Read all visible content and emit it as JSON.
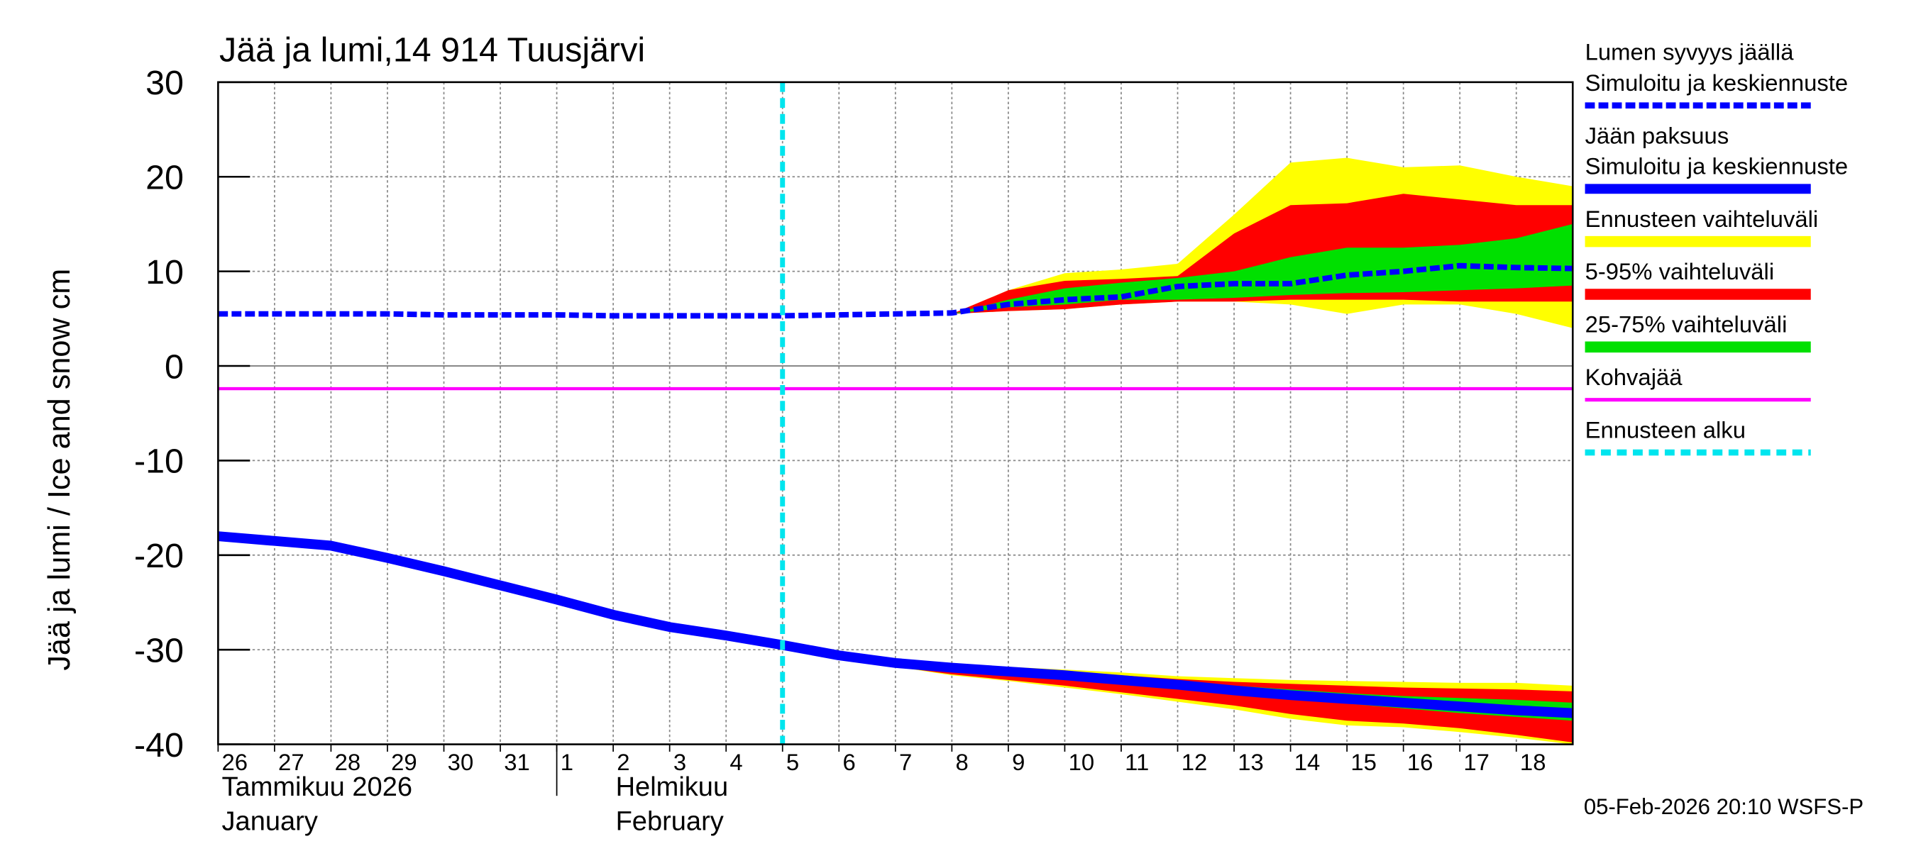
{
  "chart_data": {
    "type": "band-line",
    "title": "Jää ja lumi,14 914 Tuusjärvi",
    "ylabel": "Jää ja lumi / Ice and snow    cm",
    "footer": "05-Feb-2026 20:10 WSFS-P",
    "month_labels": [
      [
        "Tammikuu  2026",
        "January"
      ],
      [
        "Helmikuu",
        "February"
      ]
    ],
    "xlim": [
      0,
      24
    ],
    "xticks": [
      {
        "value": 0,
        "label": "26"
      },
      {
        "value": 1,
        "label": "27"
      },
      {
        "value": 2,
        "label": "28"
      },
      {
        "value": 3,
        "label": "29"
      },
      {
        "value": 4,
        "label": "30"
      },
      {
        "value": 5,
        "label": "31"
      },
      {
        "value": 6,
        "label": "1"
      },
      {
        "value": 7,
        "label": "2"
      },
      {
        "value": 8,
        "label": "3"
      },
      {
        "value": 9,
        "label": "4"
      },
      {
        "value": 10,
        "label": "5"
      },
      {
        "value": 11,
        "label": "6"
      },
      {
        "value": 12,
        "label": "7"
      },
      {
        "value": 13,
        "label": "8"
      },
      {
        "value": 14,
        "label": "9"
      },
      {
        "value": 15,
        "label": "10"
      },
      {
        "value": 16,
        "label": "11"
      },
      {
        "value": 17,
        "label": "12"
      },
      {
        "value": 18,
        "label": "13"
      },
      {
        "value": 19,
        "label": "14"
      },
      {
        "value": 20,
        "label": "15"
      },
      {
        "value": 21,
        "label": "16"
      },
      {
        "value": 22,
        "label": "17"
      },
      {
        "value": 23,
        "label": "18"
      }
    ],
    "month_start": 6,
    "ylim": [
      -40,
      30
    ],
    "yticks": [
      30,
      20,
      10,
      0,
      -10,
      -20,
      -30,
      -40
    ],
    "grid": true,
    "series": [
      {
        "name": [
          "Lumen syvyys jäällä",
          "Simuloitu ja keskiennuste"
        ],
        "kind": "line",
        "dashed": true,
        "color": "#0000ff",
        "x": [
          0,
          1,
          2,
          3,
          4,
          5,
          6,
          7,
          8,
          9,
          10,
          11,
          12,
          13,
          14,
          15,
          16,
          17,
          18,
          19,
          20,
          21,
          22,
          23,
          24
        ],
        "values": [
          5.5,
          5.5,
          5.5,
          5.5,
          5.4,
          5.4,
          5.4,
          5.3,
          5.3,
          5.3,
          5.3,
          5.4,
          5.5,
          5.6,
          6.5,
          7,
          7.3,
          8.4,
          8.7,
          8.7,
          9.6,
          10,
          10.6,
          10.4,
          10.3
        ]
      },
      {
        "name": [
          "Jään paksuus",
          "Simuloitu ja keskiennuste"
        ],
        "kind": "line",
        "dashed": false,
        "color": "#0000ff",
        "x": [
          0,
          1,
          2,
          3,
          4,
          5,
          6,
          7,
          8,
          9,
          10,
          11,
          12,
          13,
          14,
          15,
          16,
          17,
          18,
          19,
          20,
          21,
          22,
          23,
          24
        ],
        "values": [
          -18,
          -18.5,
          -19,
          -20.3,
          -21.7,
          -23.2,
          -24.7,
          -26.3,
          -27.6,
          -28.5,
          -29.5,
          -30.6,
          -31.4,
          -31.9,
          -32.3,
          -32.7,
          -33.2,
          -33.7,
          -34.3,
          -34.8,
          -35.2,
          -35.6,
          -36,
          -36.4,
          -36.7
        ]
      },
      {
        "name": [
          "Ennusteen vaihteluväli"
        ],
        "kind": "band",
        "color": "#ffff00",
        "bands": [
          {
            "x": [
              13,
              14,
              15,
              16,
              17,
              18,
              19,
              20,
              21,
              22,
              23,
              24
            ],
            "upper": [
              5.5,
              8,
              9.8,
              10.2,
              10.8,
              16,
              21.5,
              22,
              21,
              21.2,
              20,
              19
            ],
            "lower": [
              5.5,
              5.8,
              6,
              6.5,
              6.8,
              6.8,
              6.5,
              5.5,
              6.5,
              6.5,
              5.5,
              4
            ]
          },
          {
            "x": [
              10,
              11,
              12,
              13,
              14,
              15,
              16,
              17,
              18,
              19,
              20,
              21,
              22,
              23,
              24
            ],
            "upper": [
              -29.5,
              -30.4,
              -31,
              -31.5,
              -31.8,
              -32.1,
              -32.4,
              -32.8,
              -33,
              -33.2,
              -33.3,
              -33.4,
              -33.5,
              -33.5,
              -33.8
            ],
            "lower": [
              -29.5,
              -30.8,
              -31.8,
              -32.7,
              -33.3,
              -34,
              -34.7,
              -35.5,
              -36.3,
              -37.3,
              -38,
              -38.2,
              -38.7,
              -39.3,
              -40
            ]
          }
        ]
      },
      {
        "name": [
          "5-95% vaihteluväli"
        ],
        "kind": "band",
        "color": "#ff0000",
        "bands": [
          {
            "x": [
              13,
              14,
              15,
              16,
              17,
              18,
              19,
              20,
              21,
              22,
              23,
              24
            ],
            "upper": [
              5.5,
              8,
              9,
              9.2,
              9.5,
              14,
              17,
              17.2,
              18.2,
              17.6,
              17,
              17
            ],
            "lower": [
              5.5,
              5.8,
              6,
              6.5,
              6.8,
              6.8,
              7,
              7,
              7,
              6.8,
              6.8,
              6.8
            ]
          },
          {
            "x": [
              10,
              11,
              12,
              13,
              14,
              15,
              16,
              17,
              18,
              19,
              20,
              21,
              22,
              23,
              24
            ],
            "upper": [
              -29.5,
              -30.5,
              -31.1,
              -31.6,
              -31.9,
              -32.3,
              -32.7,
              -33.1,
              -33.4,
              -33.6,
              -33.8,
              -34,
              -34.1,
              -34.2,
              -34.4
            ],
            "lower": [
              -29.5,
              -30.8,
              -31.8,
              -32.6,
              -33.2,
              -33.8,
              -34.5,
              -35.2,
              -35.9,
              -36.8,
              -37.5,
              -37.8,
              -38.3,
              -39,
              -39.8
            ]
          }
        ]
      },
      {
        "name": [
          "25-75% vaihteluväli"
        ],
        "kind": "band",
        "color": "#00e000",
        "bands": [
          {
            "x": [
              13,
              14,
              15,
              16,
              17,
              18,
              19,
              20,
              21,
              22,
              23,
              24
            ],
            "upper": [
              5.5,
              7,
              8.2,
              8.8,
              9.3,
              10,
              11.5,
              12.5,
              12.5,
              12.8,
              13.5,
              15
            ],
            "lower": [
              5.5,
              6.2,
              6.5,
              7,
              7,
              7.2,
              7.5,
              7.7,
              7.8,
              8,
              8.2,
              8.5
            ]
          },
          {
            "x": [
              10,
              11,
              12,
              13,
              14,
              15,
              16,
              17,
              18,
              19,
              20,
              21,
              22,
              23,
              24
            ],
            "upper": [
              -29.5,
              -30.6,
              -31.3,
              -31.8,
              -32.1,
              -32.5,
              -32.9,
              -33.3,
              -33.8,
              -34.2,
              -34.6,
              -34.9,
              -35.1,
              -35.3,
              -35.6
            ],
            "lower": [
              -29.5,
              -30.7,
              -31.5,
              -32.1,
              -32.5,
              -33,
              -33.5,
              -34,
              -34.7,
              -35.2,
              -35.7,
              -36.2,
              -36.7,
              -37.1,
              -37.5
            ]
          }
        ]
      },
      {
        "name": [
          "Kohvajää"
        ],
        "kind": "hline",
        "color": "#ff00ff",
        "value": -2.4
      },
      {
        "name": [
          "Ennusteen alku"
        ],
        "kind": "vline",
        "color": "#00e5ee",
        "x": 10
      }
    ]
  }
}
